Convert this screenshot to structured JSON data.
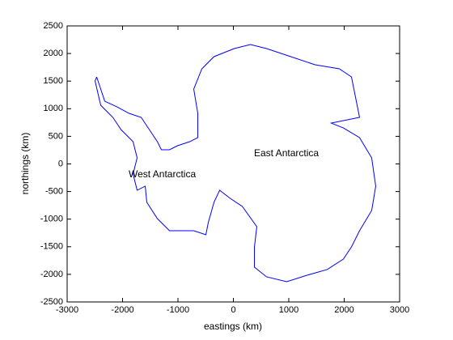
{
  "chart_data": {
    "type": "line",
    "xlabel": "eastings (km)",
    "ylabel": "northings (km)",
    "annotations": [
      "East Antarctica",
      "West Antarctica"
    ],
    "series": [
      {
        "color": "#0000ff",
        "x": [
          -2467,
          -2394,
          -2321,
          -2102,
          -1883,
          -1664,
          -1518,
          -1372,
          -1299,
          -1153,
          -1007,
          -788,
          -642,
          -642,
          -715,
          -569,
          -350,
          15,
          307,
          599,
          1037,
          1474,
          1912,
          2131,
          2204,
          2277,
          2058,
          1766,
          1985,
          2277,
          2496,
          2569,
          2496,
          2277,
          2131,
          1985,
          1693,
          1328,
          963,
          599,
          380,
          380,
          423,
          161,
          -58,
          -248,
          -350,
          -453,
          -496,
          -715,
          -1153,
          -1372,
          -1562,
          -1591,
          -1737,
          -1810,
          -1737,
          -1810,
          -2029,
          -2175,
          -2394,
          -2496,
          -2467
        ],
        "y": [
          1576,
          1356,
          1136,
          1034,
          916,
          843,
          623,
          403,
          257,
          257,
          330,
          403,
          477,
          916,
          1356,
          1723,
          1943,
          2089,
          2163,
          2089,
          1943,
          1796,
          1723,
          1576,
          1210,
          843,
          799,
          740,
          652,
          477,
          110,
          -403,
          -843,
          -1210,
          -1503,
          -1723,
          -1913,
          -2016,
          -2133,
          -2045,
          -1869,
          -1503,
          -1136,
          -770,
          -623,
          -477,
          -696,
          -1063,
          -1283,
          -1210,
          -1210,
          -990,
          -696,
          -403,
          -477,
          -183,
          110,
          403,
          623,
          843,
          1063,
          1503,
          1576
        ]
      }
    ],
    "xlim": [
      -3000,
      3000
    ],
    "xticks": [
      -3000,
      -2000,
      -1000,
      0,
      1000,
      2000,
      3000
    ],
    "ylim": [
      -2500,
      2500
    ],
    "yticks": [
      -2500,
      -2000,
      -1500,
      -1000,
      -500,
      0,
      500,
      1000,
      1500,
      2000,
      2500
    ],
    "grid": false
  }
}
